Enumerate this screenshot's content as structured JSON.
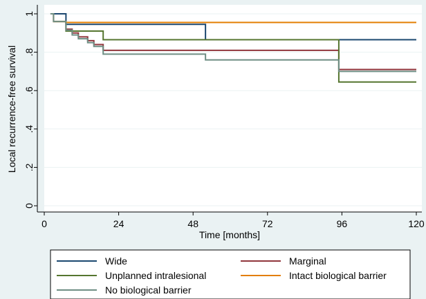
{
  "chart_data": {
    "type": "line",
    "subtype": "step (Kaplan-Meier)",
    "xlabel": "Time [months]",
    "ylabel": "Local recurrence-free survival",
    "xlim": [
      0,
      120
    ],
    "ylim": [
      0,
      1
    ],
    "xticks": [
      0,
      24,
      48,
      72,
      96,
      120
    ],
    "xtick_labels": [
      "0",
      "24",
      "48",
      "72",
      "96",
      "120"
    ],
    "yticks": [
      0,
      0.2,
      0.4,
      0.6,
      0.8,
      1
    ],
    "ytick_labels": [
      "0",
      ".2",
      ".4",
      ".6",
      ".8",
      "1"
    ],
    "grid": "horizontal",
    "legend_position": "bottom",
    "series": [
      {
        "name": "Wide",
        "color": "#1a476f",
        "x": [
          2,
          7,
          52,
          120
        ],
        "y": [
          1.0,
          0.945,
          0.865,
          0.865
        ]
      },
      {
        "name": "Marginal",
        "color": "#90353b",
        "x": [
          2,
          3,
          7,
          9,
          11,
          14,
          16,
          19,
          95,
          120
        ],
        "y": [
          1.0,
          0.96,
          0.92,
          0.9,
          0.88,
          0.86,
          0.84,
          0.81,
          0.71,
          0.71
        ]
      },
      {
        "name": "Unplanned intralesional",
        "color": "#55752f",
        "x": [
          2,
          3,
          7,
          19,
          95,
          120
        ],
        "y": [
          1.0,
          0.96,
          0.91,
          0.865,
          0.645,
          0.645
        ]
      },
      {
        "name": "Intact biological barrier",
        "color": "#e37e00",
        "x": [
          2,
          3,
          7,
          120
        ],
        "y": [
          1.0,
          0.96,
          0.955,
          0.955
        ]
      },
      {
        "name": "No biological barrier",
        "color": "#6e8e84",
        "x": [
          2,
          3,
          7,
          9,
          11,
          14,
          16,
          19,
          52,
          95,
          120
        ],
        "y": [
          1.0,
          0.96,
          0.915,
          0.89,
          0.87,
          0.85,
          0.83,
          0.79,
          0.76,
          0.7,
          0.7
        ]
      }
    ]
  }
}
